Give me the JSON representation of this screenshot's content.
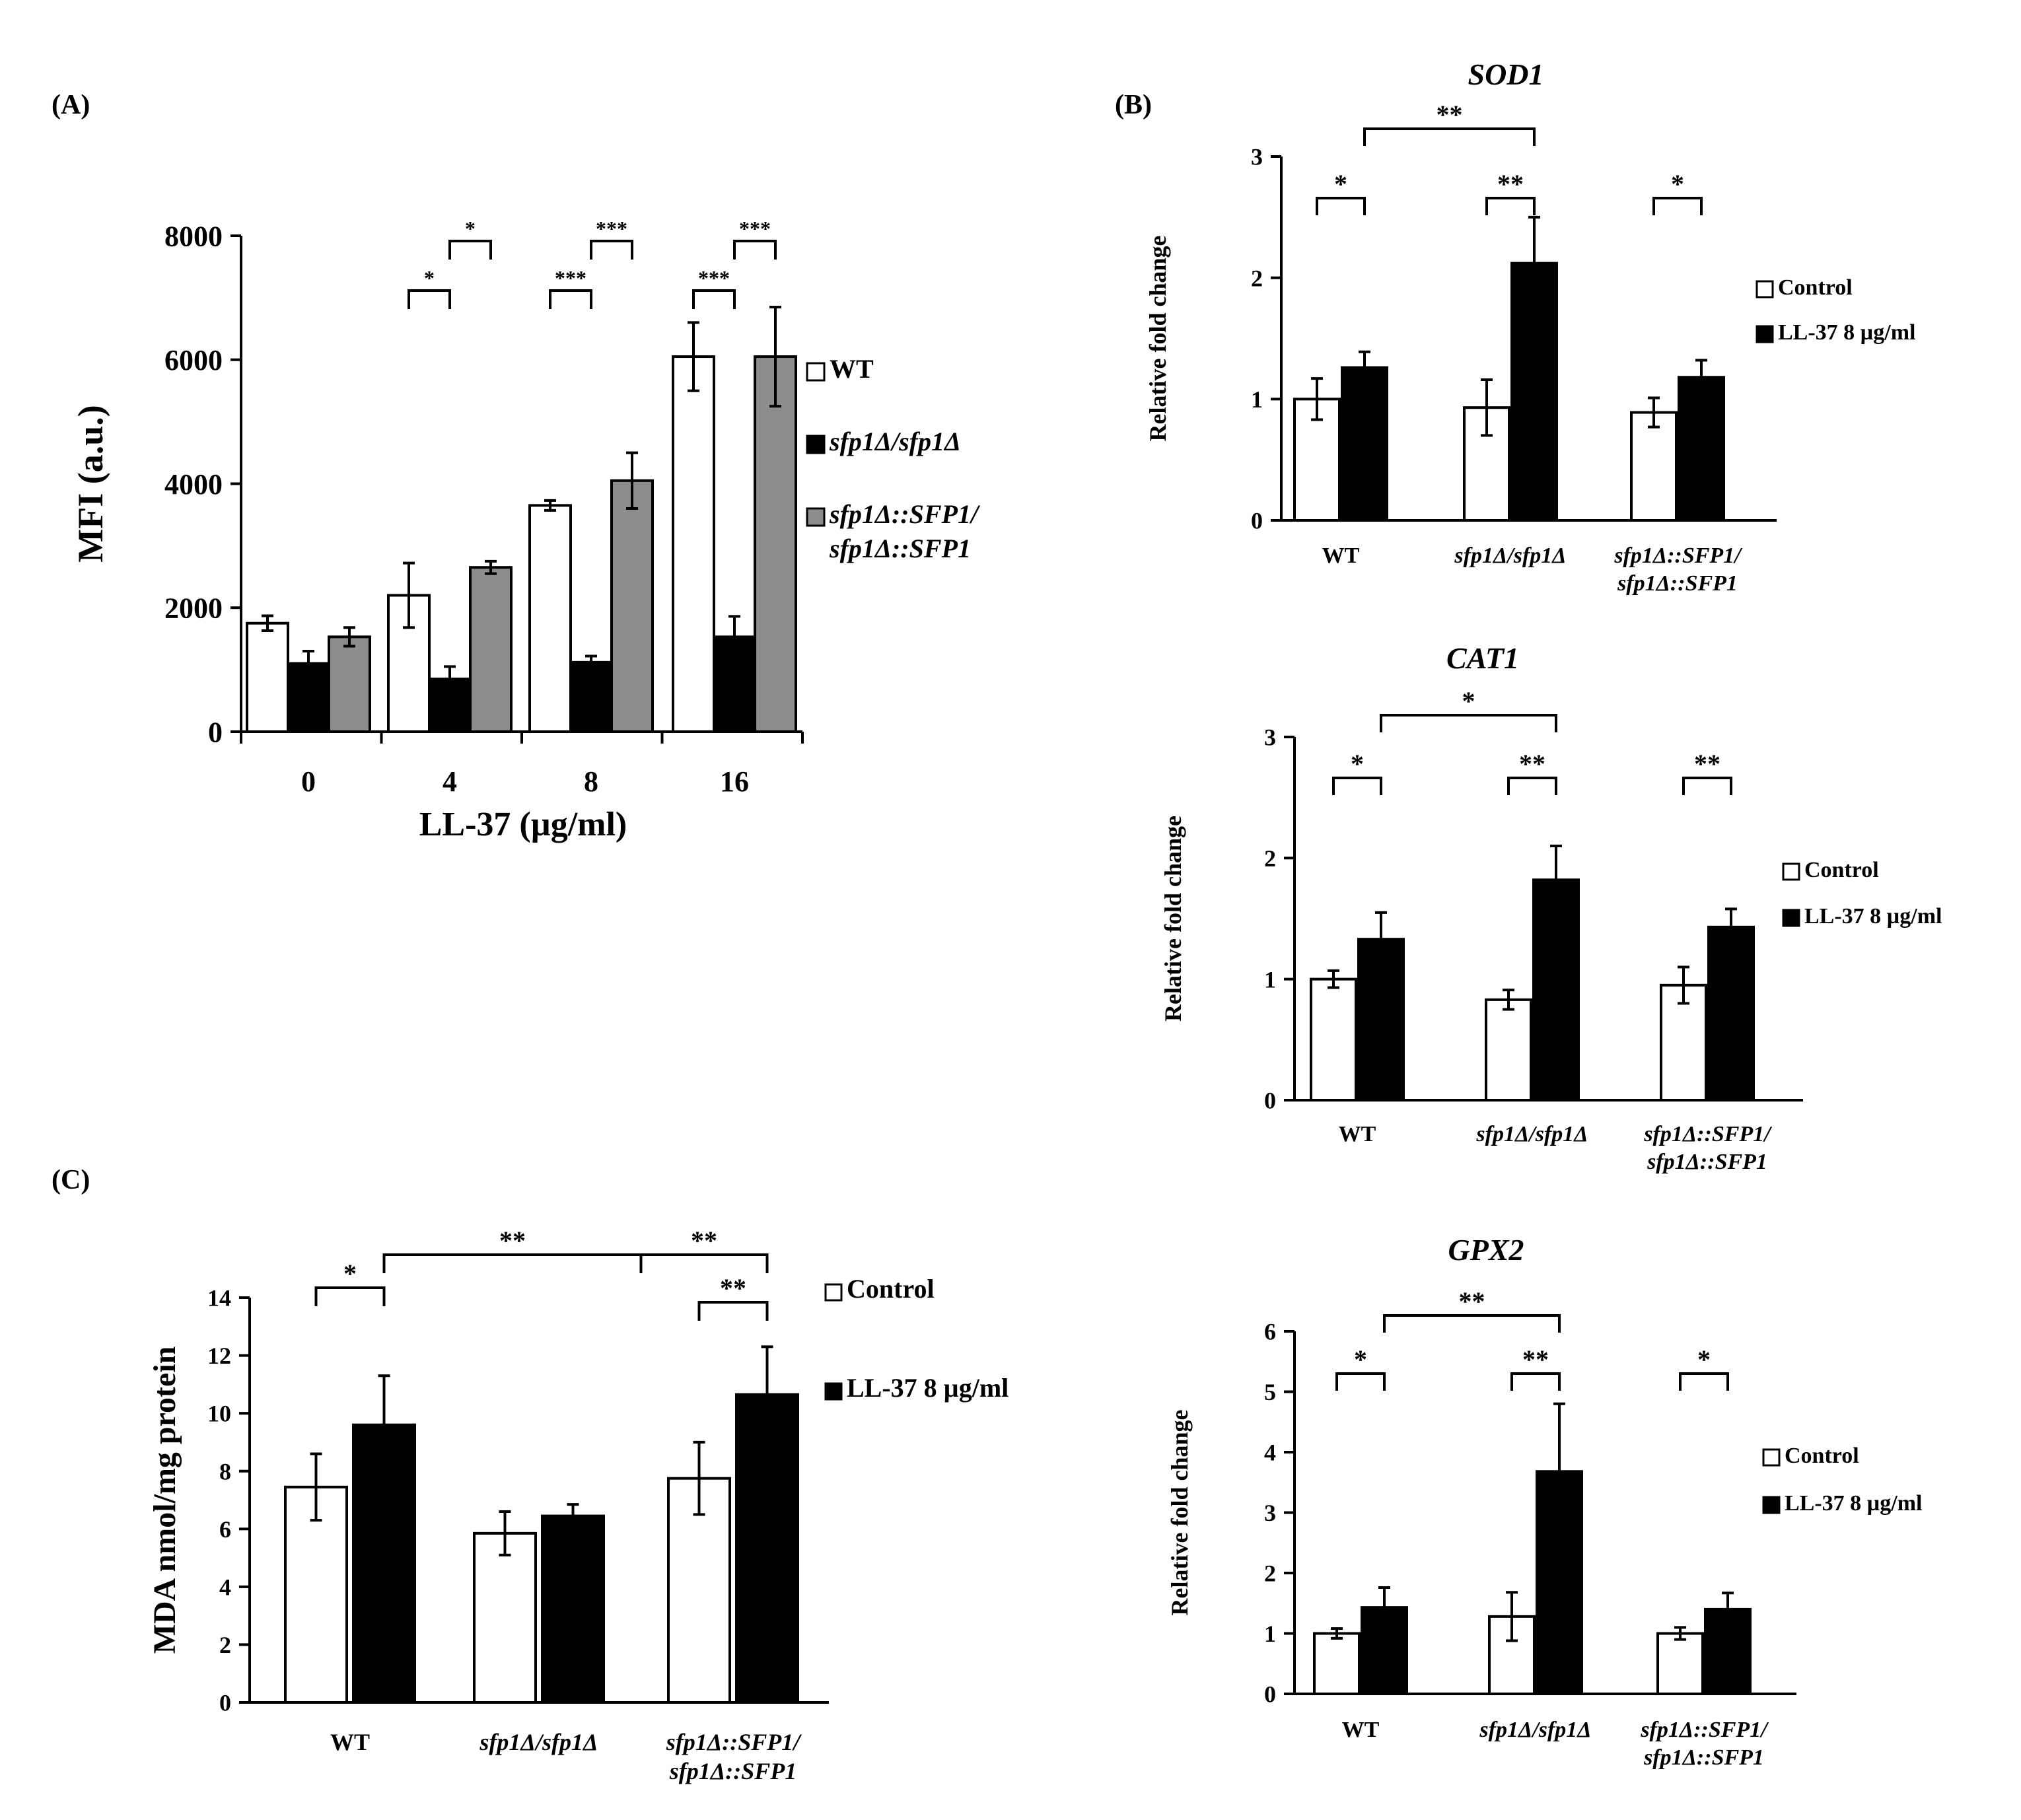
{
  "colors": {
    "white_bar": "#ffffff",
    "black_bar": "#000000",
    "gray_bar": "#8c8c8c",
    "axis": "#000000"
  },
  "chart_data": [
    {
      "id": "A",
      "panel_label": "(A)",
      "type": "bar",
      "title": "",
      "xlabel": "LL-37  (µg/ml)",
      "ylabel": "MFI (a.u.)",
      "ylim": [
        0,
        8000
      ],
      "yticks": [
        0,
        2000,
        4000,
        6000,
        8000
      ],
      "categories": [
        "0",
        "4",
        "8",
        "16"
      ],
      "series": [
        {
          "name": "WT",
          "color": "white",
          "values": [
            1750,
            2200,
            3650,
            6050
          ],
          "errors": [
            120,
            520,
            80,
            550
          ]
        },
        {
          "name": "sfp1Δ/sfp1Δ",
          "color": "black",
          "values": [
            1100,
            850,
            1120,
            1530
          ],
          "errors": [
            200,
            200,
            100,
            330
          ]
        },
        {
          "name": "sfp1Δ::SFP1/sfp1Δ::SFP1",
          "color": "gray",
          "values": [
            1530,
            2650,
            4050,
            6050
          ],
          "errors": [
            150,
            100,
            450,
            800
          ]
        }
      ],
      "legend": [
        {
          "lines": [
            "WT"
          ]
        },
        {
          "lines": [
            "sfp1Δ/sfp1Δ"
          ]
        },
        {
          "lines": [
            "sfp1Δ::SFP1/",
            "sfp1Δ::SFP1"
          ]
        }
      ],
      "legend_position": "right",
      "significance": [
        {
          "from": [
            1,
            0
          ],
          "to": [
            1,
            1
          ],
          "label": "*"
        },
        {
          "from": [
            1,
            1
          ],
          "to": [
            1,
            2
          ],
          "label": "*"
        },
        {
          "from": [
            2,
            0
          ],
          "to": [
            2,
            1
          ],
          "label": "***"
        },
        {
          "from": [
            2,
            1
          ],
          "to": [
            2,
            2
          ],
          "label": "***"
        },
        {
          "from": [
            3,
            0
          ],
          "to": [
            3,
            1
          ],
          "label": "***"
        },
        {
          "from": [
            3,
            1
          ],
          "to": [
            3,
            2
          ],
          "label": "***"
        }
      ]
    },
    {
      "id": "B1",
      "panel_label": "(B)",
      "type": "bar",
      "title": "SOD1",
      "xlabel": "",
      "ylabel": "Relative fold change",
      "ylim": [
        0,
        3
      ],
      "yticks": [
        0,
        1,
        2,
        3
      ],
      "categories": [
        [
          "WT"
        ],
        [
          "sfp1Δ/sfp1Δ"
        ],
        [
          "sfp1Δ::SFP1/",
          "sfp1Δ::SFP1"
        ]
      ],
      "series": [
        {
          "name": "Control",
          "color": "white",
          "values": [
            1.0,
            0.93,
            0.89
          ],
          "errors": [
            0.17,
            0.23,
            0.12
          ]
        },
        {
          "name": "LL-37  8 µg/ml",
          "color": "black",
          "values": [
            1.26,
            2.12,
            1.18
          ],
          "errors": [
            0.13,
            0.38,
            0.14
          ]
        }
      ],
      "legend": [
        {
          "lines": [
            "Control"
          ]
        },
        {
          "lines": [
            "LL-37  8 µg/ml"
          ]
        }
      ],
      "legend_position": "right",
      "significance": [
        {
          "from": [
            0,
            0
          ],
          "to": [
            0,
            1
          ],
          "label": "*"
        },
        {
          "from": [
            1,
            0
          ],
          "to": [
            1,
            1
          ],
          "label": "**"
        },
        {
          "from": [
            2,
            0
          ],
          "to": [
            2,
            1
          ],
          "label": "*"
        },
        {
          "from": [
            0,
            1
          ],
          "to": [
            1,
            1
          ],
          "label": "**"
        }
      ]
    },
    {
      "id": "B2",
      "panel_label": "",
      "type": "bar",
      "title": "CAT1",
      "xlabel": "",
      "ylabel": "Relative fold change",
      "ylim": [
        0,
        3
      ],
      "yticks": [
        0,
        1,
        2,
        3
      ],
      "categories": [
        [
          "WT"
        ],
        [
          "sfp1Δ/sfp1Δ"
        ],
        [
          "sfp1Δ::SFP1/",
          "sfp1Δ::SFP1"
        ]
      ],
      "series": [
        {
          "name": "Control",
          "color": "white",
          "values": [
            1.0,
            0.83,
            0.95
          ],
          "errors": [
            0.07,
            0.08,
            0.15
          ]
        },
        {
          "name": "LL-37  8 µg/ml",
          "color": "black",
          "values": [
            1.33,
            1.82,
            1.43
          ],
          "errors": [
            0.22,
            0.28,
            0.15
          ]
        }
      ],
      "legend": [
        {
          "lines": [
            "Control"
          ]
        },
        {
          "lines": [
            "LL-37  8 µg/ml"
          ]
        }
      ],
      "legend_position": "right",
      "significance": [
        {
          "from": [
            0,
            0
          ],
          "to": [
            0,
            1
          ],
          "label": "*"
        },
        {
          "from": [
            1,
            0
          ],
          "to": [
            1,
            1
          ],
          "label": "**"
        },
        {
          "from": [
            2,
            0
          ],
          "to": [
            2,
            1
          ],
          "label": "**"
        },
        {
          "from": [
            0,
            1
          ],
          "to": [
            1,
            1
          ],
          "label": "*"
        }
      ]
    },
    {
      "id": "B3",
      "panel_label": "",
      "type": "bar",
      "title": "GPX2",
      "xlabel": "",
      "ylabel": "Relative fold change",
      "ylim": [
        0,
        6
      ],
      "yticks": [
        0,
        1,
        2,
        3,
        4,
        5,
        6
      ],
      "categories": [
        [
          "WT"
        ],
        [
          "sfp1Δ/sfp1Δ"
        ],
        [
          "sfp1Δ::SFP1/",
          "sfp1Δ::SFP1"
        ]
      ],
      "series": [
        {
          "name": "Control",
          "color": "white",
          "values": [
            1.0,
            1.28,
            1.0
          ],
          "errors": [
            0.08,
            0.4,
            0.1
          ]
        },
        {
          "name": "LL-37  8 µg/ml",
          "color": "black",
          "values": [
            1.43,
            3.68,
            1.4
          ],
          "errors": [
            0.33,
            1.12,
            0.27
          ]
        }
      ],
      "legend": [
        {
          "lines": [
            "Control"
          ]
        },
        {
          "lines": [
            "LL-37  8 µg/ml"
          ]
        }
      ],
      "legend_position": "right",
      "significance": [
        {
          "from": [
            0,
            0
          ],
          "to": [
            0,
            1
          ],
          "label": "*"
        },
        {
          "from": [
            1,
            0
          ],
          "to": [
            1,
            1
          ],
          "label": "**"
        },
        {
          "from": [
            2,
            0
          ],
          "to": [
            2,
            1
          ],
          "label": "*"
        },
        {
          "from": [
            0,
            1
          ],
          "to": [
            1,
            1
          ],
          "label": "**"
        }
      ]
    },
    {
      "id": "C",
      "panel_label": "(C)",
      "type": "bar",
      "title": "",
      "xlabel": "",
      "ylabel": "MDA nmol/mg protein",
      "ylim": [
        0,
        14
      ],
      "yticks": [
        0,
        2,
        4,
        6,
        8,
        10,
        12,
        14
      ],
      "categories": [
        [
          "WT"
        ],
        [
          "sfp1Δ/sfp1Δ"
        ],
        [
          "sfp1Δ::SFP1/",
          "sfp1Δ::SFP1"
        ]
      ],
      "series": [
        {
          "name": "Control",
          "color": "white",
          "values": [
            7.45,
            5.85,
            7.75
          ],
          "errors": [
            1.15,
            0.75,
            1.25
          ]
        },
        {
          "name": "LL-37  8 µg/ml",
          "color": "black",
          "values": [
            9.6,
            6.45,
            10.65
          ],
          "errors": [
            1.7,
            0.4,
            1.65
          ]
        }
      ],
      "legend": [
        {
          "lines": [
            "Control"
          ]
        },
        {
          "lines": [
            "LL-37  8 µg/ml"
          ]
        }
      ],
      "legend_position": "right",
      "significance": [
        {
          "from": [
            0,
            0
          ],
          "to": [
            0,
            1
          ],
          "label": "*"
        },
        {
          "from": [
            2,
            0
          ],
          "to": [
            2,
            1
          ],
          "label": "**"
        },
        {
          "from": [
            0,
            1
          ],
          "to": [
            1,
            2
          ],
          "label": "**"
        },
        {
          "from": [
            1,
            2
          ],
          "to": [
            2,
            1
          ],
          "label": "**"
        }
      ]
    }
  ]
}
